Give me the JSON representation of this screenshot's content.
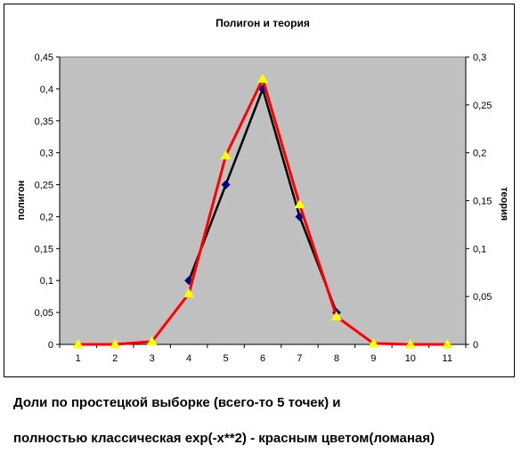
{
  "chart_data": {
    "type": "line",
    "title": "Полигон и теория",
    "ylabel": "полигон",
    "y2label": "теория",
    "categories": [
      "1",
      "2",
      "3",
      "4",
      "5",
      "6",
      "7",
      "8",
      "9",
      "10",
      "11"
    ],
    "ylim": [
      0,
      0.45
    ],
    "y2lim": [
      0,
      0.3
    ],
    "yticks": [
      "0",
      "0,05",
      "0,1",
      "0,15",
      "0,2",
      "0,25",
      "0,3",
      "0,35",
      "0,4",
      "0,45"
    ],
    "y2ticks": [
      "0",
      "0,05",
      "0,1",
      "0,15",
      "0,2",
      "0,25",
      "0,3"
    ],
    "grid": false,
    "legend": "none",
    "series": [
      {
        "axis": "left",
        "color": "#000000",
        "marker": "diamond",
        "marker_color": "#000080",
        "x": [
          4,
          5,
          6,
          7,
          8
        ],
        "values": [
          0.1,
          0.25,
          0.4,
          0.2,
          0.05
        ]
      },
      {
        "axis": "right",
        "color": "#ff0000",
        "marker": "triangle",
        "marker_color": "#ffff00",
        "x": [
          1,
          2,
          3,
          4,
          5,
          6,
          7,
          8,
          9,
          10,
          11
        ],
        "values": [
          0,
          0,
          0.003,
          0.053,
          0.197,
          0.277,
          0.146,
          0.029,
          0.001,
          0,
          0
        ]
      }
    ],
    "plot_background": "#c0c0c0"
  },
  "captions": {
    "line1": "Доли по простецкой выборке (всего-то 5 точек) и",
    "line2": "полностью классическая exp(-x**2) - красным цветом(ломаная)"
  }
}
